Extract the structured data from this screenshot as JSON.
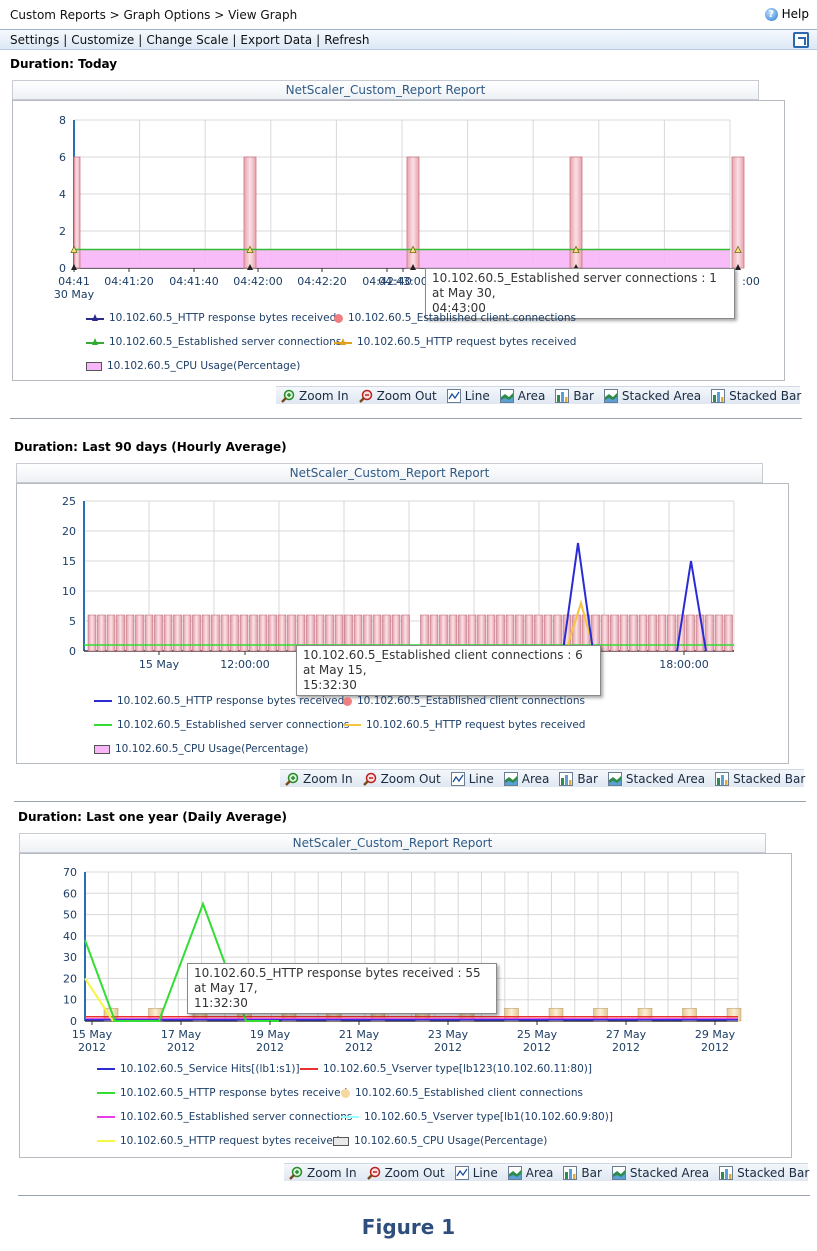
{
  "breadcrumb": {
    "path": "Custom Reports > Graph Options > View Graph"
  },
  "help_label": "Help",
  "menu": [
    "Settings",
    "Customize",
    "Change Scale",
    "Export Data",
    "Refresh"
  ],
  "toolbar_buttons": [
    "Zoom In",
    "Zoom Out",
    "Line",
    "Area",
    "Bar",
    "Stacked Area",
    "Stacked Bar"
  ],
  "colors": {
    "accent": "#2e5a86",
    "blue_series": "#2b2bd6",
    "green_series": "#33dd33",
    "yellow_series": "#f5c542",
    "cpu_bar": "#f3c4cf",
    "pink_series": "#e83ee8",
    "red_series": "#e83030",
    "cyan_series": "#99ffff"
  },
  "charts": [
    {
      "duration": "Duration: Today",
      "title": "NetScaler_Custom_Report Report",
      "tooltip": {
        "line1": "10.102.60.5_Established server connections : 1 at May 30,",
        "line2": "04:43:00"
      },
      "legend": [
        {
          "label": "10.102.60.5_HTTP response bytes received",
          "color": "#2b2b8c",
          "marker": "line-tri"
        },
        {
          "label": "10.102.60.5_Established client connections",
          "color": "#f08080",
          "marker": "dot"
        },
        {
          "label": "10.102.60.5_Established server connections",
          "color": "#33aa33",
          "marker": "line-tri"
        },
        {
          "label": "10.102.60.5_HTTP request bytes received",
          "color": "#e0a020",
          "marker": "line-tri"
        },
        {
          "label": "10.102.60.5_CPU Usage(Percentage)",
          "color": "#f7b6f7",
          "marker": "box"
        }
      ],
      "chart_data": {
        "type": "line",
        "y_ticks": [
          "0",
          "2",
          "4",
          "6",
          "8"
        ],
        "ylim": [
          0,
          8
        ],
        "x_tick_labels": [
          "04:41",
          "04:41:20",
          "04:41:40",
          "04:42:00",
          "04:42:20",
          "04:42:40",
          "04:43:00"
        ],
        "x_sublabel": "30 May",
        "x_tick_tail": ":00",
        "series": [
          {
            "name": "10.102.60.5_Established client connections",
            "kind": "spike-bars",
            "values": [
              6,
              6,
              6,
              6,
              6
            ],
            "x_positions": [
              "04:41:00",
              "04:42:00",
              "04:43:00",
              "04:44:00",
              "04:45:00"
            ]
          },
          {
            "name": "10.102.60.5_Established server connections",
            "kind": "line",
            "values": [
              1,
              1,
              1,
              1,
              1
            ]
          },
          {
            "name": "10.102.60.5_CPU Usage(Percentage)",
            "kind": "area",
            "values": [
              1,
              1,
              1,
              1,
              1
            ]
          }
        ]
      }
    },
    {
      "duration": "Duration: Last 90 days (Hourly Average)",
      "title": "NetScaler_Custom_Report Report",
      "tooltip": {
        "line1": "10.102.60.5_Established client connections : 6 at May 15,",
        "line2": "15:32:30"
      },
      "legend": [
        {
          "label": "10.102.60.5_HTTP response bytes received",
          "color": "#2b2bd6",
          "marker": "line"
        },
        {
          "label": "10.102.60.5_Established client connections",
          "color": "#f08080",
          "marker": "dot"
        },
        {
          "label": "10.102.60.5_Established server connections",
          "color": "#33dd33",
          "marker": "line"
        },
        {
          "label": "10.102.60.5_HTTP request bytes received",
          "color": "#f5c542",
          "marker": "line"
        },
        {
          "label": "10.102.60.5_CPU Usage(Percentage)",
          "color": "#f7b6f7",
          "marker": "box"
        }
      ],
      "chart_data": {
        "type": "line",
        "y_ticks": [
          "0",
          "5",
          "10",
          "15",
          "20",
          "25"
        ],
        "ylim": [
          0,
          25
        ],
        "x_tick_labels": [
          "15 May",
          "12:00:00",
          "00",
          "18:00:00"
        ],
        "series": [
          {
            "name": "10.102.60.5_Established client connections",
            "kind": "bars",
            "value": 6
          },
          {
            "name": "10.102.60.5_HTTP response bytes received",
            "kind": "peaks",
            "values": [
              18,
              15
            ]
          },
          {
            "name": "10.102.60.5_HTTP request bytes received",
            "kind": "peaks",
            "values": [
              8
            ]
          },
          {
            "name": "10.102.60.5_Established server connections",
            "kind": "line",
            "value": 1
          }
        ]
      }
    },
    {
      "duration": "Duration: Last one year (Daily Average)",
      "title": "NetScaler_Custom_Report Report",
      "tooltip": {
        "line1": "10.102.60.5_HTTP response bytes received : 55 at May 17,",
        "line2": "11:32:30"
      },
      "legend": [
        {
          "label": "10.102.60.5_Service Hits[(lb1:s1)]",
          "color": "#2b2bd6",
          "marker": "line"
        },
        {
          "label": "10.102.60.5_Vserver type[lb123(10.102.60.11:80)]",
          "color": "#e83030",
          "marker": "line"
        },
        {
          "label": "10.102.60.5_HTTP response bytes received",
          "color": "#33dd33",
          "marker": "line"
        },
        {
          "label": "10.102.60.5_Established client connections",
          "color": "#f5d9a0",
          "marker": "dot"
        },
        {
          "label": "10.102.60.5_Established server connections",
          "color": "#e83ee8",
          "marker": "line"
        },
        {
          "label": "10.102.60.5_Vserver type[lb1(10.102.60.9:80)]",
          "color": "#99ffff",
          "marker": "line"
        },
        {
          "label": "10.102.60.5_HTTP request bytes received",
          "color": "#f5f542",
          "marker": "line"
        },
        {
          "label": "10.102.60.5_CPU Usage(Percentage)",
          "color": "#e8e8e8",
          "marker": "box"
        }
      ],
      "chart_data": {
        "type": "line",
        "y_ticks": [
          "0",
          "10",
          "20",
          "30",
          "40",
          "50",
          "60",
          "70"
        ],
        "ylim": [
          0,
          70
        ],
        "x_tick_labels": [
          "15 May",
          "17 May",
          "19 May",
          "21 May",
          "23 May",
          "25 May",
          "27 May",
          "29 May"
        ],
        "x_sublabel": "2012",
        "series": [
          {
            "name": "10.102.60.5_HTTP response bytes received",
            "kind": "line",
            "values": [
              38,
              0,
              0,
              55,
              0,
              0
            ]
          },
          {
            "name": "10.102.60.5_HTTP request bytes received",
            "kind": "line",
            "values": [
              20,
              0
            ]
          },
          {
            "name": "10.102.60.5_Established client connections",
            "kind": "bars",
            "value": 6
          },
          {
            "name": "10.102.60.5_Vserver type[lb123(10.102.60.11:80)]",
            "kind": "line",
            "value": 2
          },
          {
            "name": "10.102.60.5_Established server connections",
            "kind": "line",
            "value": 1
          },
          {
            "name": "10.102.60.5_Service Hits[(lb1:s1)]",
            "kind": "line",
            "value": 0.5
          }
        ]
      }
    }
  ],
  "figure_caption": "Figure 1"
}
